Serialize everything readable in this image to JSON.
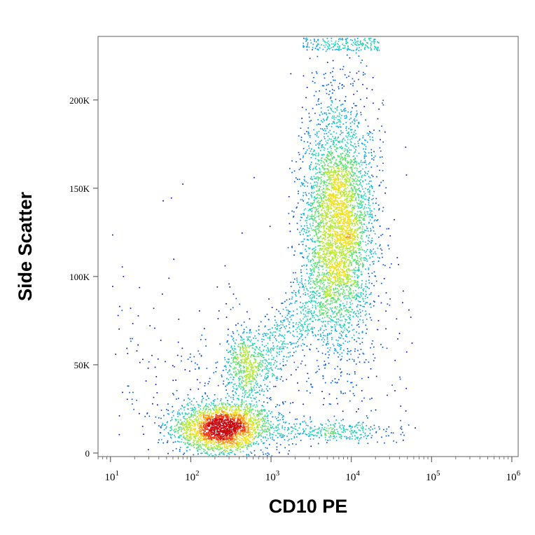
{
  "chart_data": {
    "type": "scatter",
    "subtype": "flow-cytometry-density-dot-plot",
    "title": "",
    "xlabel": "CD10 PE",
    "ylabel": "Side Scatter",
    "x_scale": "log",
    "xlim": [
      7,
      1200000
    ],
    "ylim": [
      -2000,
      236000
    ],
    "x_ticks": [
      {
        "value": 10,
        "base": "10",
        "exp": "1"
      },
      {
        "value": 100,
        "base": "10",
        "exp": "2"
      },
      {
        "value": 1000,
        "base": "10",
        "exp": "3"
      },
      {
        "value": 10000,
        "base": "10",
        "exp": "4"
      },
      {
        "value": 100000,
        "base": "10",
        "exp": "5"
      },
      {
        "value": 1000000,
        "base": "10",
        "exp": "6"
      }
    ],
    "y_ticks": [
      {
        "value": 0,
        "label": "0"
      },
      {
        "value": 50000,
        "label": "50K"
      },
      {
        "value": 100000,
        "label": "100K"
      },
      {
        "value": 150000,
        "label": "150K"
      },
      {
        "value": 200000,
        "label": "200K"
      }
    ],
    "grid": false,
    "density_colormap": [
      "#0a16c8",
      "#0a5ad8",
      "#12a8e0",
      "#27d2b8",
      "#60e070",
      "#b2ea32",
      "#f0e020",
      "#f89a1a",
      "#f03818",
      "#c80a10"
    ],
    "populations": [
      {
        "x_center": 250,
        "y_center": 14000,
        "x_spread_decades": 0.3,
        "y_spread": 7000,
        "count": 2600
      },
      {
        "x_center": 480,
        "y_center": 52000,
        "x_spread_decades": 0.12,
        "y_spread": 9000,
        "count": 450
      },
      {
        "x_center": 7000,
        "y_center": 130000,
        "x_spread_decades": 0.22,
        "y_spread": 34000,
        "count": 4200
      },
      {
        "x_center": 5500,
        "y_center": 12000,
        "x_spread_decades": 0.35,
        "y_spread": 3000,
        "count": 300
      }
    ]
  }
}
